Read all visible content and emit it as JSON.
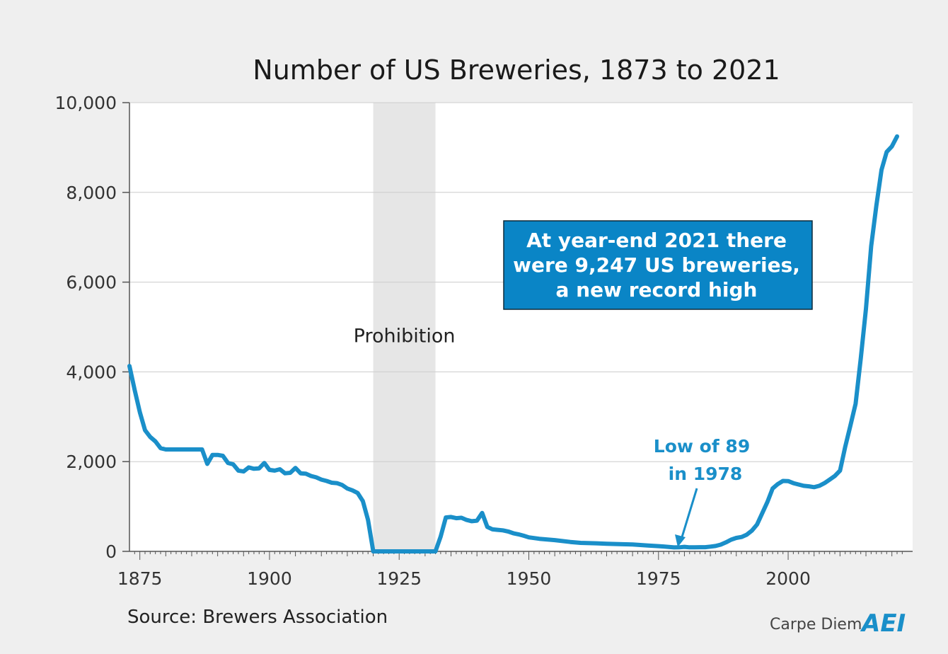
{
  "chart_data": {
    "type": "line",
    "title": "Number of US Breweries, 1873 to 2021",
    "xlabel": "",
    "ylabel": "",
    "xlim": [
      1873,
      2024
    ],
    "ylim": [
      0,
      10000
    ],
    "xticks": [
      1875,
      1900,
      1925,
      1950,
      1975,
      2000
    ],
    "xtick_labels": [
      "1875",
      "1900",
      "1925",
      "1950",
      "1975",
      "2000"
    ],
    "yticks": [
      0,
      2000,
      4000,
      6000,
      8000,
      10000
    ],
    "ytick_labels": [
      "0",
      "2,000",
      "4,000",
      "6,000",
      "8,000",
      "10,000"
    ],
    "grid": true,
    "shaded_period": {
      "label": "Prohibition",
      "start": 1920,
      "end": 1932
    },
    "series": [
      {
        "name": "US Breweries",
        "color": "#1a8fc9",
        "x": [
          1873,
          1874,
          1875,
          1876,
          1877,
          1878,
          1879,
          1880,
          1881,
          1882,
          1883,
          1884,
          1885,
          1886,
          1887,
          1888,
          1889,
          1890,
          1891,
          1892,
          1893,
          1894,
          1895,
          1896,
          1897,
          1898,
          1899,
          1900,
          1901,
          1902,
          1903,
          1904,
          1905,
          1906,
          1907,
          1908,
          1909,
          1910,
          1911,
          1912,
          1913,
          1914,
          1915,
          1916,
          1917,
          1918,
          1919,
          1920,
          1921,
          1925,
          1930,
          1932,
          1933,
          1934,
          1935,
          1936,
          1937,
          1938,
          1939,
          1940,
          1941,
          1942,
          1943,
          1944,
          1945,
          1946,
          1947,
          1948,
          1949,
          1950,
          1952,
          1955,
          1958,
          1960,
          1963,
          1965,
          1968,
          1970,
          1973,
          1975,
          1976,
          1977,
          1978,
          1979,
          1980,
          1981,
          1982,
          1983,
          1984,
          1985,
          1986,
          1987,
          1988,
          1989,
          1990,
          1991,
          1992,
          1993,
          1994,
          1995,
          1996,
          1997,
          1998,
          1999,
          2000,
          2001,
          2002,
          2003,
          2004,
          2005,
          2006,
          2007,
          2008,
          2009,
          2010,
          2011,
          2012,
          2013,
          2014,
          2015,
          2016,
          2017,
          2018,
          2019,
          2020,
          2021
        ],
        "y": [
          4131,
          3600,
          3100,
          2700,
          2550,
          2450,
          2300,
          2272,
          2272,
          2272,
          2272,
          2272,
          2272,
          2272,
          2272,
          1950,
          2150,
          2150,
          2130,
          1970,
          1940,
          1800,
          1780,
          1870,
          1840,
          1850,
          1970,
          1816,
          1800,
          1830,
          1740,
          1750,
          1860,
          1740,
          1730,
          1680,
          1650,
          1600,
          1570,
          1530,
          1520,
          1480,
          1400,
          1360,
          1300,
          1120,
          700,
          0,
          0,
          0,
          0,
          0,
          331,
          756,
          766,
          739,
          750,
          700,
          672,
          684,
          857,
          545,
          491,
          479,
          468,
          443,
          404,
          380,
          349,
          312,
          280,
          250,
          210,
          190,
          180,
          170,
          160,
          154,
          130,
          117,
          109,
          100,
          89,
          90,
          101,
          90,
          92,
          93,
          93,
          105,
          120,
          150,
          200,
          260,
          300,
          320,
          370,
          460,
          600,
          850,
          1100,
          1400,
          1500,
          1570,
          1566,
          1520,
          1490,
          1460,
          1450,
          1430,
          1460,
          1520,
          1600,
          1680,
          1800,
          2330,
          2800,
          3290,
          4300,
          5400,
          6800,
          7700,
          8500,
          8900,
          9025,
          9247
        ]
      }
    ],
    "annotations": {
      "callout_lines": [
        "At year-end 2021 there",
        "were 9,247 US breweries,",
        "a new record high"
      ],
      "low_lines": [
        "Low of 89",
        "in 1978"
      ],
      "low_point": {
        "x": 1978,
        "y": 89
      }
    },
    "source": "Source: Brewers Association",
    "brand": "Carpe Diem",
    "logo_text": "AEI",
    "colors": {
      "line": "#1a8fc9",
      "callout_bg": "#0a85c6",
      "shade": "#e6e6e6",
      "grid": "#cccccc",
      "background": "#efefef",
      "plot_bg": "#ffffff"
    }
  }
}
